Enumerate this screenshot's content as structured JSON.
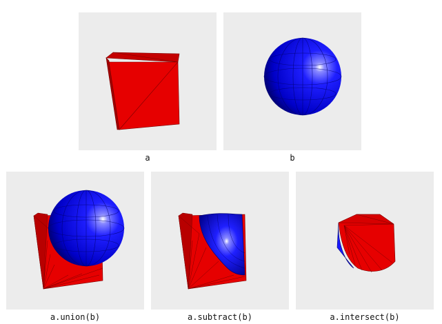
{
  "panels": [
    {
      "id": "a",
      "caption": "a",
      "object": "red-cube"
    },
    {
      "id": "b",
      "caption": "b",
      "object": "blue-sphere"
    },
    {
      "id": "union",
      "caption": "a.union(b)",
      "object": "cube-union-sphere"
    },
    {
      "id": "subtract",
      "caption": "a.subtract(b)",
      "object": "cube-subtract-sphere"
    },
    {
      "id": "intersect",
      "caption": "a.intersect(b)",
      "object": "cube-intersect-sphere"
    }
  ],
  "colors": {
    "cube": "#e60000",
    "cube_dark": "#b00000",
    "sphere": "#1a1aff",
    "sphere_dark": "#00008c",
    "background": "#ececec"
  }
}
